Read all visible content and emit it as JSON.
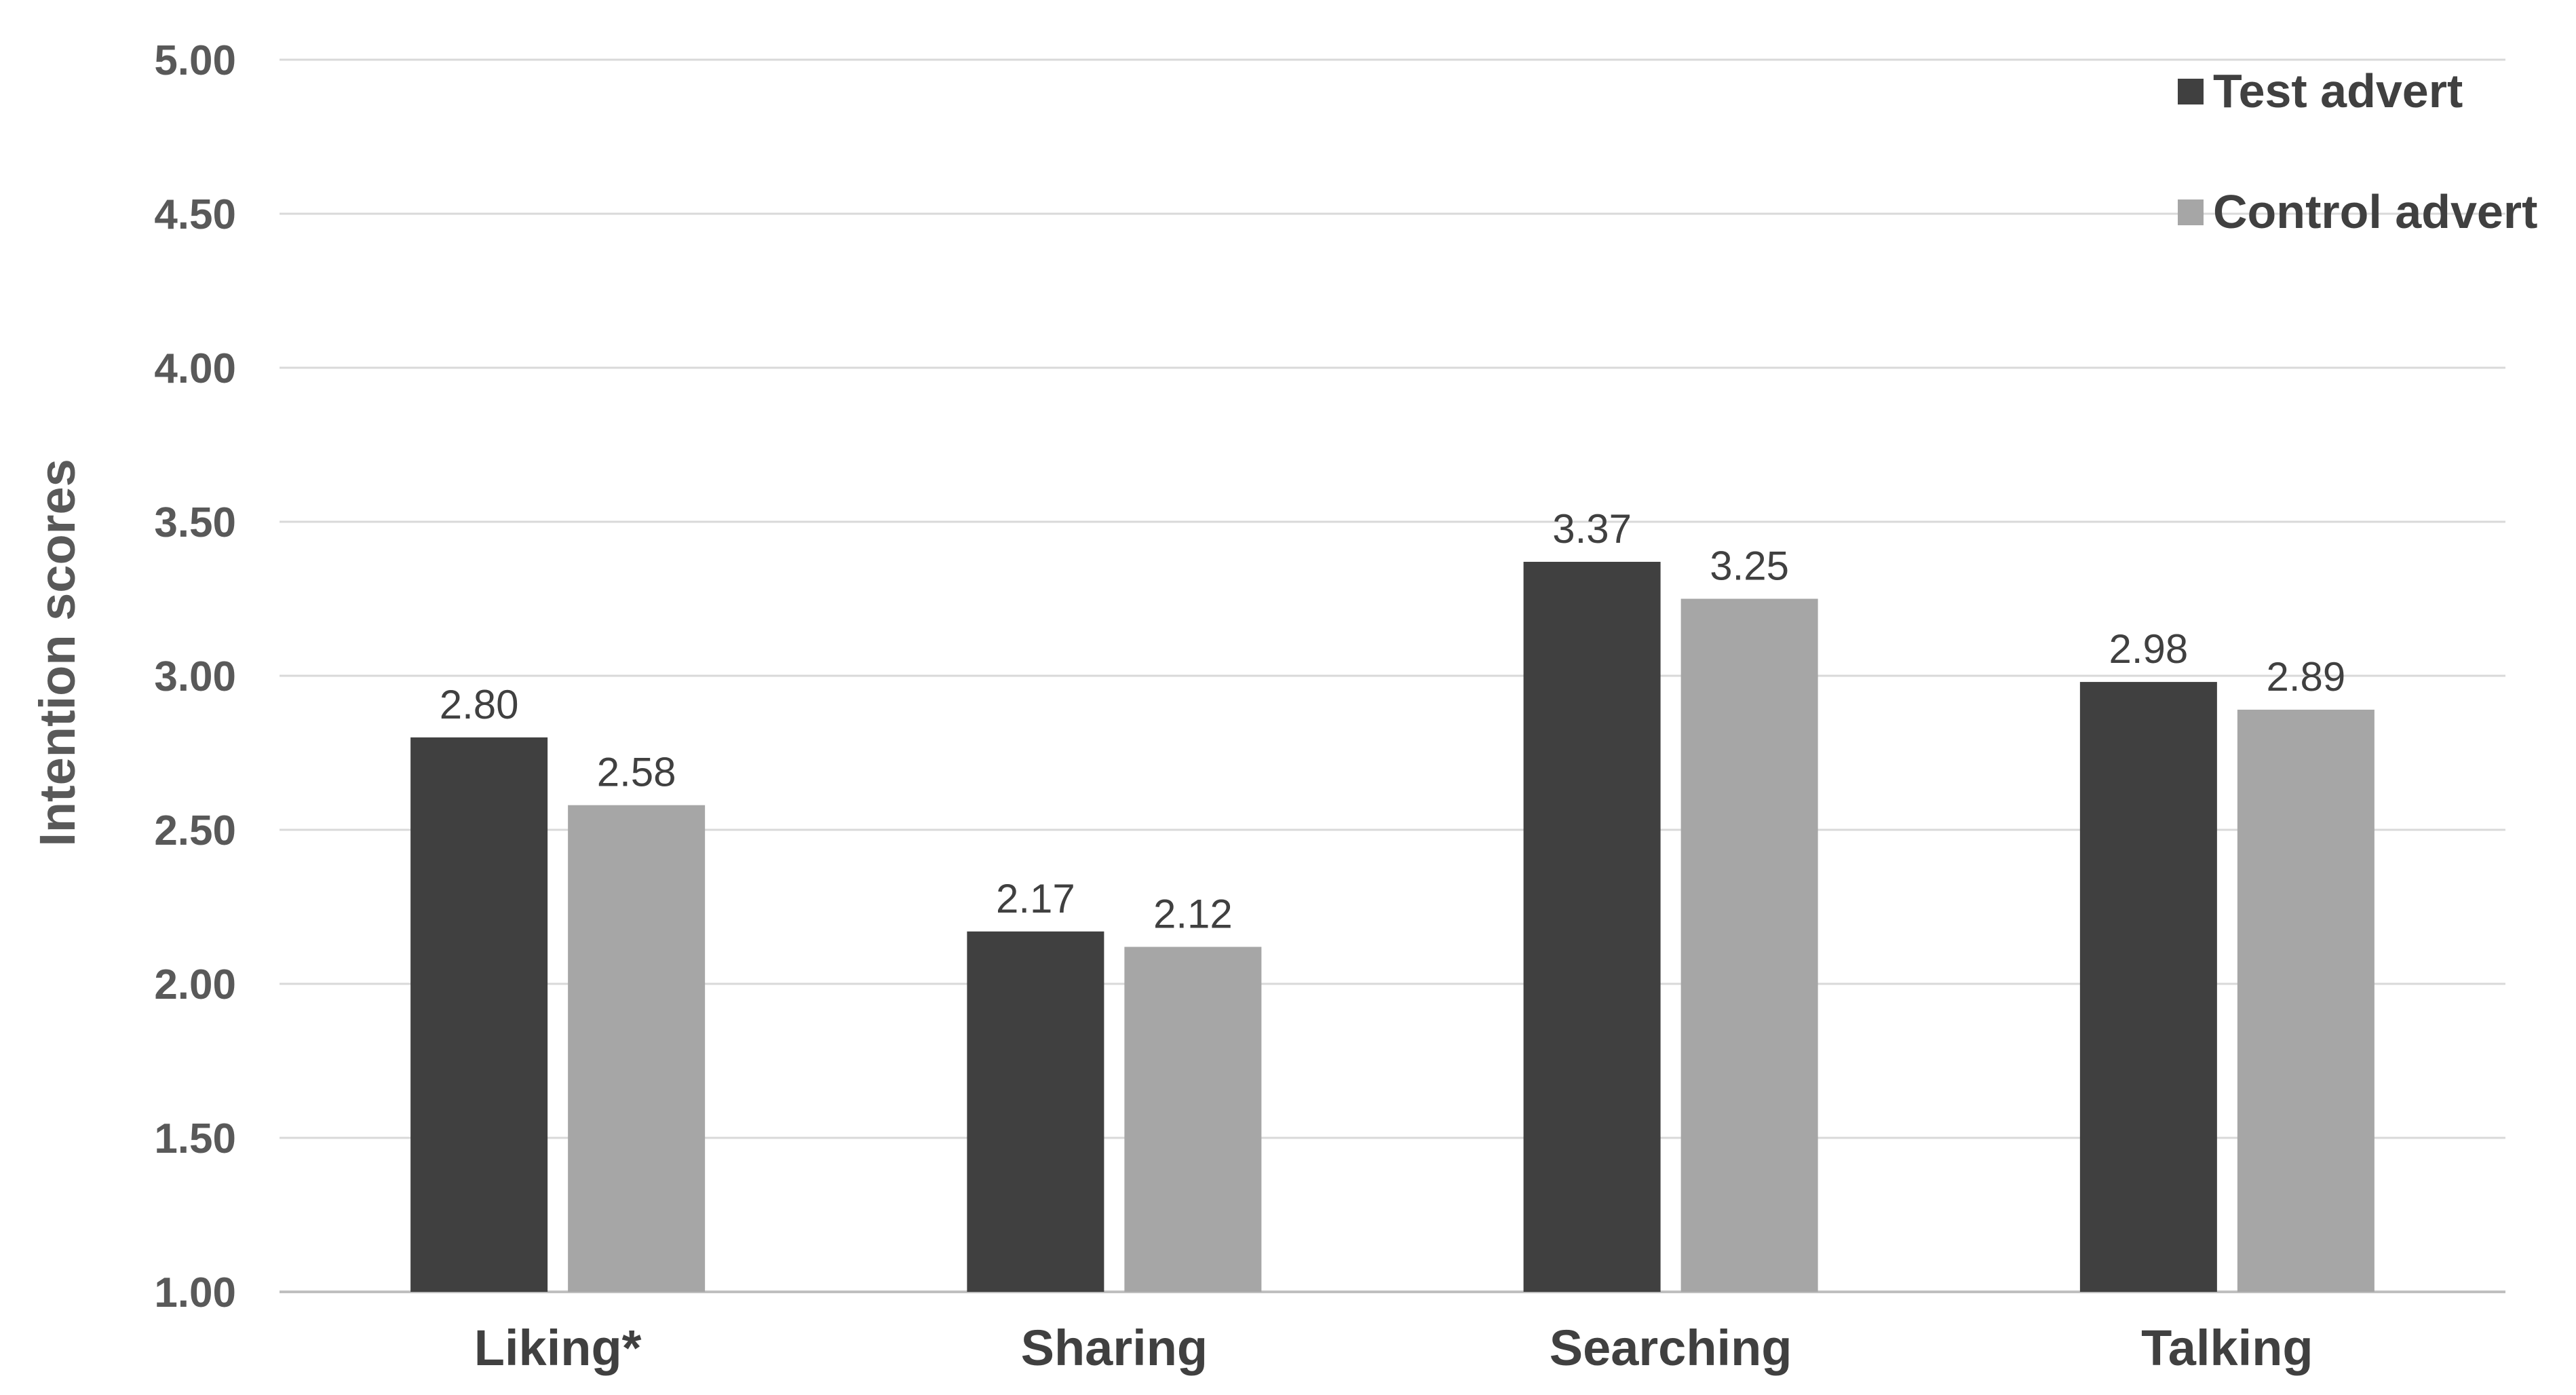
{
  "colors": {
    "test_advert": "#404040",
    "control_advert": "#a6a6a6",
    "gridline": "#d9d9d9",
    "axis_line": "#bfbfbf"
  },
  "chart_data": {
    "type": "bar",
    "title": "",
    "xlabel": "",
    "ylabel": "Intention scores",
    "ylim": [
      1.0,
      5.0
    ],
    "yticks": [
      "1.00",
      "1.50",
      "2.00",
      "2.50",
      "3.00",
      "3.50",
      "4.00",
      "4.50",
      "5.00"
    ],
    "categories": [
      "Liking*",
      "Sharing",
      "Searching",
      "Talking"
    ],
    "series": [
      {
        "name": "Test advert",
        "values": [
          2.8,
          2.17,
          3.37,
          2.98
        ],
        "labels": [
          "2.80",
          "2.17",
          "3.37",
          "2.98"
        ],
        "color": "#404040"
      },
      {
        "name": "Control advert",
        "values": [
          2.58,
          2.12,
          3.25,
          2.89
        ],
        "labels": [
          "2.58",
          "2.12",
          "3.25",
          "2.89"
        ],
        "color": "#a6a6a6"
      }
    ],
    "grid": true,
    "legend_position": "top-right"
  }
}
